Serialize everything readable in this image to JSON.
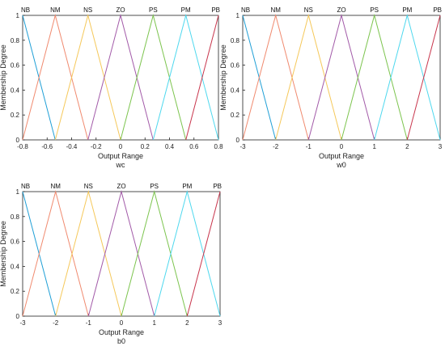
{
  "chart_data": [
    {
      "type": "line",
      "title": "",
      "xlabel": "Output Range",
      "ylabel": "Membership Degree",
      "caption": "wc",
      "xlim": [
        -0.8,
        0.8
      ],
      "ylim": [
        0,
        1
      ],
      "xticks": [
        "-0.8",
        "-0.6",
        "-0.4",
        "-0.2",
        "0",
        "0.2",
        "0.4",
        "0.6",
        "0.8"
      ],
      "yticks": [
        "0",
        "0.2",
        "0.4",
        "0.6",
        "0.8",
        "1"
      ],
      "grid": false,
      "series": [
        {
          "name": "NB",
          "color": "#1f9fd6",
          "x": [
            -0.8,
            -0.8,
            -0.5333
          ],
          "y": [
            1,
            1,
            0
          ]
        },
        {
          "name": "NM",
          "color": "#f08a6f",
          "x": [
            -0.8,
            -0.5333,
            -0.2667
          ],
          "y": [
            0,
            1,
            0
          ]
        },
        {
          "name": "NS",
          "color": "#f5c85a",
          "x": [
            -0.5333,
            -0.2667,
            0
          ],
          "y": [
            0,
            1,
            0
          ]
        },
        {
          "name": "ZO",
          "color": "#a25aa8",
          "x": [
            -0.2667,
            0,
            0.2667
          ],
          "y": [
            0,
            1,
            0
          ]
        },
        {
          "name": "PS",
          "color": "#7cc44e",
          "x": [
            0,
            0.2667,
            0.5333
          ],
          "y": [
            0,
            1,
            0
          ]
        },
        {
          "name": "PM",
          "color": "#4ed8ee",
          "x": [
            0.2667,
            0.5333,
            0.8
          ],
          "y": [
            0,
            1,
            0
          ]
        },
        {
          "name": "PB",
          "color": "#c8354c",
          "x": [
            0.5333,
            0.8,
            0.8
          ],
          "y": [
            0,
            1,
            1
          ]
        }
      ]
    },
    {
      "type": "line",
      "title": "",
      "xlabel": "Output Range",
      "ylabel": "Membership Degree",
      "caption": "w0",
      "xlim": [
        -3,
        3
      ],
      "ylim": [
        0,
        1
      ],
      "xticks": [
        "-3",
        "-2",
        "-1",
        "0",
        "1",
        "2",
        "3"
      ],
      "yticks": [
        "0",
        "0.2",
        "0.4",
        "0.6",
        "0.8",
        "1"
      ],
      "grid": false,
      "series": [
        {
          "name": "NB",
          "color": "#1f9fd6",
          "x": [
            -3,
            -3,
            -2
          ],
          "y": [
            1,
            1,
            0
          ]
        },
        {
          "name": "NM",
          "color": "#f08a6f",
          "x": [
            -3,
            -2,
            -1
          ],
          "y": [
            0,
            1,
            0
          ]
        },
        {
          "name": "NS",
          "color": "#f5c85a",
          "x": [
            -2,
            -1,
            0
          ],
          "y": [
            0,
            1,
            0
          ]
        },
        {
          "name": "ZO",
          "color": "#a25aa8",
          "x": [
            -1,
            0,
            1
          ],
          "y": [
            0,
            1,
            0
          ]
        },
        {
          "name": "PS",
          "color": "#7cc44e",
          "x": [
            0,
            1,
            2
          ],
          "y": [
            0,
            1,
            0
          ]
        },
        {
          "name": "PM",
          "color": "#4ed8ee",
          "x": [
            1,
            2,
            3
          ],
          "y": [
            0,
            1,
            0
          ]
        },
        {
          "name": "PB",
          "color": "#c8354c",
          "x": [
            2,
            3,
            3
          ],
          "y": [
            0,
            1,
            1
          ]
        }
      ]
    },
    {
      "type": "line",
      "title": "",
      "xlabel": "Output Range",
      "ylabel": "Membership Degree",
      "caption": "b0",
      "xlim": [
        -3,
        3
      ],
      "ylim": [
        0,
        1
      ],
      "xticks": [
        "-3",
        "-2",
        "-1",
        "0",
        "1",
        "2",
        "3"
      ],
      "yticks": [
        "0",
        "0.2",
        "0.4",
        "0.6",
        "0.8",
        "1"
      ],
      "grid": false,
      "series": [
        {
          "name": "NB",
          "color": "#1f9fd6",
          "x": [
            -3,
            -3,
            -2
          ],
          "y": [
            1,
            1,
            0
          ]
        },
        {
          "name": "NM",
          "color": "#f08a6f",
          "x": [
            -3,
            -2,
            -1
          ],
          "y": [
            0,
            1,
            0
          ]
        },
        {
          "name": "NS",
          "color": "#f5c85a",
          "x": [
            -2,
            -1,
            0
          ],
          "y": [
            0,
            1,
            0
          ]
        },
        {
          "name": "ZO",
          "color": "#a25aa8",
          "x": [
            -1,
            0,
            1
          ],
          "y": [
            0,
            1,
            0
          ]
        },
        {
          "name": "PS",
          "color": "#7cc44e",
          "x": [
            0,
            1,
            2
          ],
          "y": [
            0,
            1,
            0
          ]
        },
        {
          "name": "PM",
          "color": "#4ed8ee",
          "x": [
            1,
            2,
            3
          ],
          "y": [
            0,
            1,
            0
          ]
        },
        {
          "name": "PB",
          "color": "#c8354c",
          "x": [
            2,
            3,
            3
          ],
          "y": [
            0,
            1,
            1
          ]
        }
      ]
    }
  ]
}
